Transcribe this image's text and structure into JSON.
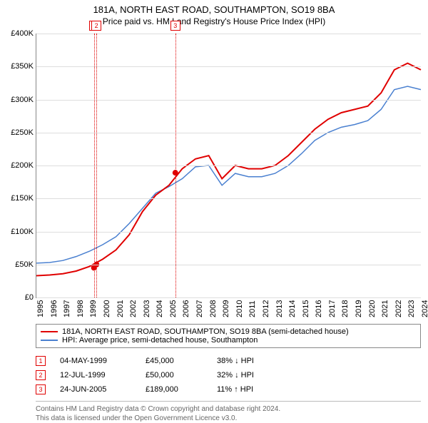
{
  "title": "181A, NORTH EAST ROAD, SOUTHAMPTON, SO19 8BA",
  "subtitle": "Price paid vs. HM Land Registry's House Price Index (HPI)",
  "chart": {
    "type": "line",
    "background_color": "#ffffff",
    "grid_color": "#dddddd",
    "axis_color": "#888888",
    "label_fontsize": 11,
    "title_fontsize": 13,
    "ylim": [
      0,
      400000
    ],
    "ytick_step": 50000,
    "yticks": [
      "£0",
      "£50K",
      "£100K",
      "£150K",
      "£200K",
      "£250K",
      "£300K",
      "£350K",
      "£400K"
    ],
    "x_years": [
      1995,
      1996,
      1997,
      1998,
      1999,
      2000,
      2001,
      2002,
      2003,
      2004,
      2005,
      2006,
      2007,
      2008,
      2009,
      2010,
      2011,
      2012,
      2013,
      2014,
      2015,
      2016,
      2017,
      2018,
      2019,
      2020,
      2021,
      2022,
      2023,
      2024
    ],
    "series": [
      {
        "name": "price_paid",
        "label": "181A, NORTH EAST ROAD, SOUTHAMPTON, SO19 8BA (semi-detached house)",
        "color": "#e00000",
        "line_width": 2,
        "y_by_year": {
          "1995": 33000,
          "1996": 34000,
          "1997": 36000,
          "1998": 40000,
          "1999": 47000,
          "2000": 58000,
          "2001": 72000,
          "2002": 95000,
          "2003": 130000,
          "2004": 155000,
          "2005": 170000,
          "2006": 195000,
          "2007": 210000,
          "2008": 215000,
          "2009": 180000,
          "2010": 200000,
          "2011": 195000,
          "2012": 195000,
          "2013": 200000,
          "2014": 215000,
          "2015": 235000,
          "2016": 255000,
          "2017": 270000,
          "2018": 280000,
          "2019": 285000,
          "2020": 290000,
          "2021": 310000,
          "2022": 345000,
          "2023": 355000,
          "2024": 345000
        }
      },
      {
        "name": "hpi",
        "label": "HPI: Average price, semi-detached house, Southampton",
        "color": "#4a80d0",
        "line_width": 1.5,
        "y_by_year": {
          "1995": 52000,
          "1996": 53000,
          "1997": 56000,
          "1998": 62000,
          "1999": 70000,
          "2000": 80000,
          "2001": 92000,
          "2002": 112000,
          "2003": 135000,
          "2004": 158000,
          "2005": 168000,
          "2006": 180000,
          "2007": 198000,
          "2008": 200000,
          "2009": 170000,
          "2010": 188000,
          "2011": 183000,
          "2012": 183000,
          "2013": 188000,
          "2014": 200000,
          "2015": 218000,
          "2016": 238000,
          "2017": 250000,
          "2018": 258000,
          "2019": 262000,
          "2020": 268000,
          "2021": 285000,
          "2022": 315000,
          "2023": 320000,
          "2024": 315000
        }
      }
    ],
    "transactions": [
      {
        "num": "1",
        "year_frac": 1999.34,
        "date": "04-MAY-1999",
        "price": "£45,000",
        "delta": "38% ↓ HPI",
        "y": 45000
      },
      {
        "num": "2",
        "year_frac": 1999.53,
        "date": "12-JUL-1999",
        "price": "£50,000",
        "delta": "32% ↓ HPI",
        "y": 50000
      },
      {
        "num": "3",
        "year_frac": 2005.48,
        "date": "24-JUN-2005",
        "price": "£189,000",
        "delta": "11% ↑ HPI",
        "y": 189000
      }
    ],
    "step_segment": {
      "from_year": 1999.53,
      "from_y": 50000,
      "to_year": 2005.48,
      "to_y": 189000,
      "color": "#e00000",
      "line_width": 2
    },
    "dot_color": "#e00000",
    "dot_radius": 4
  },
  "footer": {
    "line1": "Contains HM Land Registry data © Crown copyright and database right 2024.",
    "line2": "This data is licensed under the Open Government Licence v3.0."
  }
}
